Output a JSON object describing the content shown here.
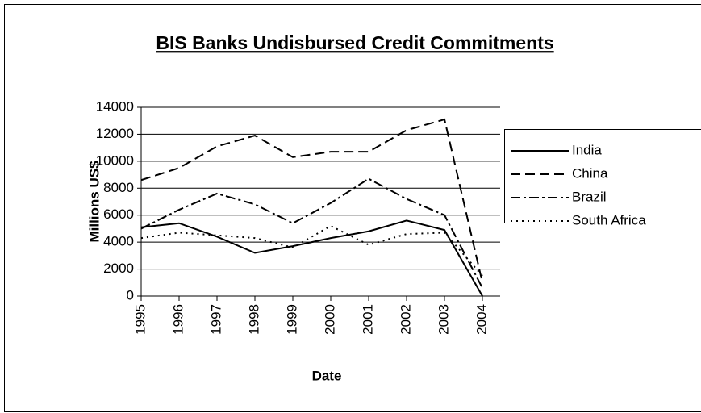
{
  "chart_data": {
    "type": "line",
    "title": "BIS Banks Undisbursed Credit Commitments",
    "x_label": "Date",
    "y_label": "Millions US$",
    "categories": [
      "1995",
      "1996",
      "1997",
      "1998",
      "1999",
      "2000",
      "2001",
      "2002",
      "2003",
      "2004"
    ],
    "series": [
      {
        "name": "India",
        "color": "#000000",
        "dash": "solid",
        "values": [
          5100,
          5400,
          4400,
          3200,
          3700,
          4300,
          4800,
          5600,
          4900,
          0
        ]
      },
      {
        "name": "China",
        "color": "#000000",
        "dash": "dashed",
        "values": [
          8600,
          9500,
          11100,
          11900,
          10300,
          10700,
          10700,
          12300,
          13100,
          1000
        ]
      },
      {
        "name": "Brazil",
        "color": "#000000",
        "dash": "dashdot",
        "values": [
          5000,
          6400,
          7600,
          6800,
          5400,
          6900,
          8700,
          7200,
          6000,
          600
        ]
      },
      {
        "name": "South Africa",
        "color": "#000000",
        "dash": "dotted",
        "values": [
          4300,
          4700,
          4500,
          4300,
          3600,
          5200,
          3800,
          4600,
          4700,
          1500
        ]
      }
    ],
    "ylim": [
      0,
      14000
    ],
    "yticks": [
      0,
      2000,
      4000,
      6000,
      8000,
      10000,
      12000,
      14000
    ],
    "grid": true,
    "legend": "right"
  }
}
